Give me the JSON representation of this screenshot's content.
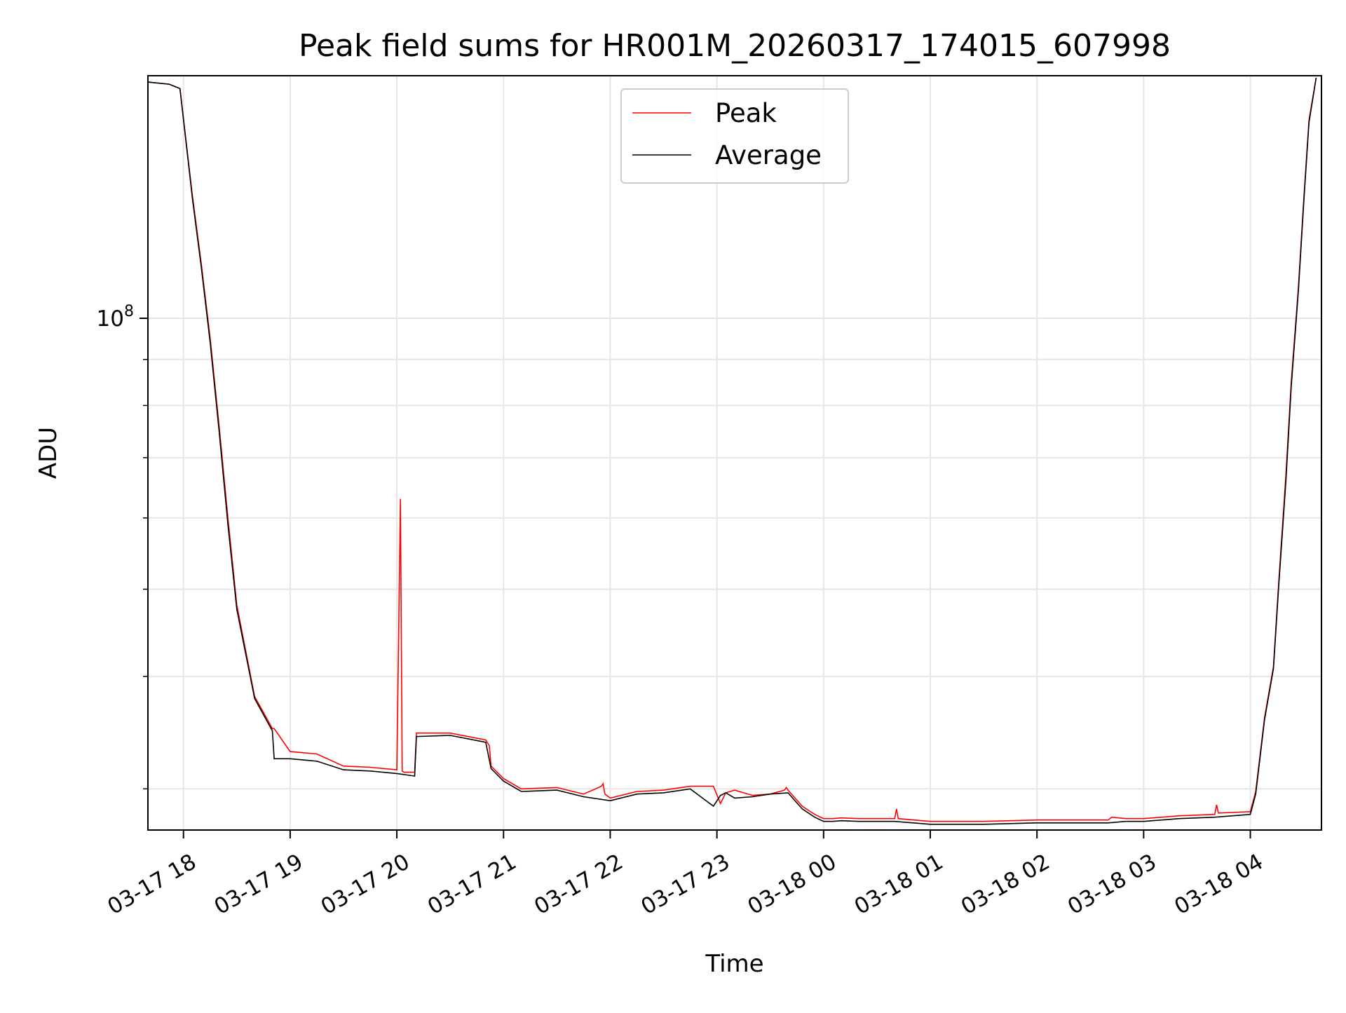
{
  "chart_data": {
    "type": "line",
    "title": "Peak field sums for HR001M_20260317_174015_607998",
    "xlabel": "Time",
    "ylabel": "ADU",
    "yscale": "log",
    "ylim": [
      27000000,
      186000000
    ],
    "xlim": [
      "2026-03-17 17:40",
      "2026-03-18 04:40"
    ],
    "grid": true,
    "legend_position": "top-center",
    "x_ticks": [
      "03-17 18",
      "03-17 19",
      "03-17 20",
      "03-17 21",
      "03-17 22",
      "03-17 23",
      "03-18 00",
      "03-18 01",
      "03-18 02",
      "03-18 03",
      "03-18 04"
    ],
    "x_tick_times": [
      "2026-03-17 18:00",
      "2026-03-17 19:00",
      "2026-03-17 20:00",
      "2026-03-17 21:00",
      "2026-03-17 22:00",
      "2026-03-17 23:00",
      "2026-03-18 00:00",
      "2026-03-18 01:00",
      "2026-03-18 02:00",
      "2026-03-18 03:00",
      "2026-03-18 04:00"
    ],
    "y_ticks": [
      {
        "value": 100000000,
        "base": "10",
        "exp": "8"
      }
    ],
    "colors": {
      "peak": "#ff0000",
      "average": "#000000",
      "grid": "#e6e6e6"
    },
    "series": [
      {
        "name": "Peak",
        "color": "#ff0000",
        "x": [
          "2026-03-17 17:40",
          "2026-03-17 17:52",
          "2026-03-17 17:58",
          "2026-03-17 18:05",
          "2026-03-17 18:10",
          "2026-03-17 18:15",
          "2026-03-17 18:20",
          "2026-03-17 18:25",
          "2026-03-17 18:30",
          "2026-03-17 18:40",
          "2026-03-17 18:50",
          "2026-03-17 18:51",
          "2026-03-17 19:00",
          "2026-03-17 19:15",
          "2026-03-17 19:30",
          "2026-03-17 19:45",
          "2026-03-17 20:00",
          "2026-03-17 20:02",
          "2026-03-17 20:03",
          "2026-03-17 20:04",
          "2026-03-17 20:10",
          "2026-03-17 20:11",
          "2026-03-17 20:30",
          "2026-03-17 20:50",
          "2026-03-17 20:52",
          "2026-03-17 20:53",
          "2026-03-17 21:00",
          "2026-03-17 21:10",
          "2026-03-17 21:30",
          "2026-03-17 21:45",
          "2026-03-17 21:55",
          "2026-03-17 21:56",
          "2026-03-17 21:57",
          "2026-03-17 22:00",
          "2026-03-17 22:15",
          "2026-03-17 22:30",
          "2026-03-17 22:45",
          "2026-03-17 22:58",
          "2026-03-17 23:02",
          "2026-03-17 23:05",
          "2026-03-17 23:10",
          "2026-03-17 23:20",
          "2026-03-17 23:30",
          "2026-03-17 23:38",
          "2026-03-17 23:39",
          "2026-03-17 23:40",
          "2026-03-17 23:48",
          "2026-03-17 23:55",
          "2026-03-18 00:00",
          "2026-03-18 00:05",
          "2026-03-18 00:10",
          "2026-03-18 00:20",
          "2026-03-18 00:40",
          "2026-03-18 00:41",
          "2026-03-18 00:42",
          "2026-03-18 01:00",
          "2026-03-18 01:30",
          "2026-03-18 02:00",
          "2026-03-18 02:40",
          "2026-03-18 02:42",
          "2026-03-18 02:50",
          "2026-03-18 03:00",
          "2026-03-18 03:20",
          "2026-03-18 03:40",
          "2026-03-18 03:41",
          "2026-03-18 03:42",
          "2026-03-18 04:00",
          "2026-03-18 04:03",
          "2026-03-18 04:08",
          "2026-03-18 04:13",
          "2026-03-18 04:16",
          "2026-03-18 04:20",
          "2026-03-18 04:23",
          "2026-03-18 04:27",
          "2026-03-18 04:30",
          "2026-03-18 04:33",
          "2026-03-18 04:37"
        ],
        "y": [
          183000000,
          182000000,
          180000000,
          137000000,
          115000000,
          95000000,
          76000000,
          60000000,
          48000000,
          38000000,
          35000000,
          35000000,
          33000000,
          32800000,
          31800000,
          31700000,
          31500000,
          63000000,
          31400000,
          31300000,
          31300000,
          34600000,
          34600000,
          34000000,
          33500000,
          31800000,
          30800000,
          30000000,
          30100000,
          29600000,
          30200000,
          30400000,
          29600000,
          29300000,
          29800000,
          29900000,
          30200000,
          30200000,
          28900000,
          29700000,
          29900000,
          29500000,
          29600000,
          29900000,
          30100000,
          29900000,
          28700000,
          28100000,
          27800000,
          27800000,
          27850000,
          27800000,
          27800000,
          28500000,
          27800000,
          27600000,
          27600000,
          27700000,
          27700000,
          27900000,
          27800000,
          27800000,
          28000000,
          28100000,
          28800000,
          28200000,
          28300000,
          29800000,
          36000000,
          41000000,
          51000000,
          67000000,
          85000000,
          108000000,
          135000000,
          166000000,
          185000000
        ]
      },
      {
        "name": "Average",
        "color": "#000000",
        "x": [
          "2026-03-17 17:40",
          "2026-03-17 17:52",
          "2026-03-17 17:58",
          "2026-03-17 18:05",
          "2026-03-17 18:10",
          "2026-03-17 18:15",
          "2026-03-17 18:20",
          "2026-03-17 18:25",
          "2026-03-17 18:30",
          "2026-03-17 18:40",
          "2026-03-17 18:50",
          "2026-03-17 18:51",
          "2026-03-17 19:00",
          "2026-03-17 19:15",
          "2026-03-17 19:30",
          "2026-03-17 19:45",
          "2026-03-17 20:00",
          "2026-03-17 20:10",
          "2026-03-17 20:11",
          "2026-03-17 20:30",
          "2026-03-17 20:50",
          "2026-03-17 20:53",
          "2026-03-17 21:00",
          "2026-03-17 21:10",
          "2026-03-17 21:30",
          "2026-03-17 21:45",
          "2026-03-17 22:00",
          "2026-03-17 22:15",
          "2026-03-17 22:30",
          "2026-03-17 22:45",
          "2026-03-17 22:58",
          "2026-03-17 23:02",
          "2026-03-17 23:05",
          "2026-03-17 23:10",
          "2026-03-17 23:20",
          "2026-03-17 23:30",
          "2026-03-17 23:40",
          "2026-03-17 23:48",
          "2026-03-17 23:55",
          "2026-03-18 00:00",
          "2026-03-18 00:05",
          "2026-03-18 00:10",
          "2026-03-18 00:20",
          "2026-03-18 00:40",
          "2026-03-18 01:00",
          "2026-03-18 01:30",
          "2026-03-18 02:00",
          "2026-03-18 02:40",
          "2026-03-18 02:50",
          "2026-03-18 03:00",
          "2026-03-18 03:20",
          "2026-03-18 03:40",
          "2026-03-18 04:00",
          "2026-03-18 04:03",
          "2026-03-18 04:08",
          "2026-03-18 04:13",
          "2026-03-18 04:16",
          "2026-03-18 04:20",
          "2026-03-18 04:23",
          "2026-03-18 04:27",
          "2026-03-18 04:30",
          "2026-03-18 04:33",
          "2026-03-18 04:37"
        ],
        "y": [
          183000000,
          182000000,
          180000000,
          136000000,
          114000000,
          94000000,
          75000000,
          59000000,
          47500000,
          37800000,
          34800000,
          32400000,
          32400000,
          32200000,
          31500000,
          31400000,
          31200000,
          31000000,
          34300000,
          34400000,
          33800000,
          31600000,
          30600000,
          29800000,
          29900000,
          29400000,
          29100000,
          29600000,
          29700000,
          30000000,
          28700000,
          29500000,
          29700000,
          29300000,
          29400000,
          29600000,
          29700000,
          28500000,
          27900000,
          27600000,
          27600000,
          27650000,
          27600000,
          27600000,
          27400000,
          27400000,
          27500000,
          27500000,
          27600000,
          27600000,
          27800000,
          27900000,
          28100000,
          29600000,
          35800000,
          40800000,
          50500000,
          66000000,
          84000000,
          107000000,
          134000000,
          165000000,
          185000000
        ]
      }
    ]
  }
}
